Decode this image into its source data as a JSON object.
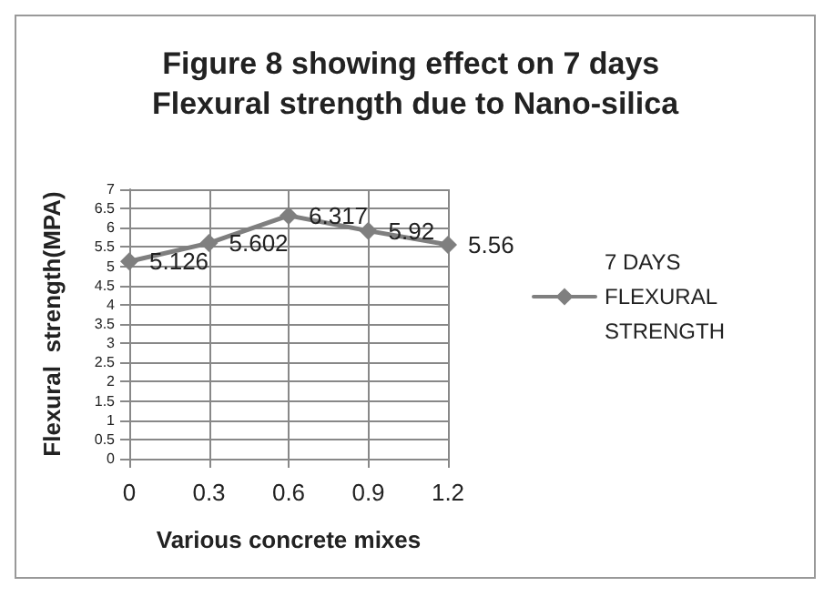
{
  "chart_data": {
    "type": "line",
    "title": "Figure 8 showing effect on 7 days Flexural strength due to Nano-silica",
    "xlabel": "Various concrete mixes",
    "ylabel": "Flexural  strength(MPA)",
    "categories": [
      "0",
      "0.3",
      "0.6",
      "0.9",
      "1.2"
    ],
    "series": [
      {
        "name": "7 DAYS FLEXURAL STRENGTH",
        "color": "#7f7f7f",
        "values": [
          5.126,
          5.602,
          6.317,
          5.92,
          5.56
        ]
      }
    ],
    "ylim": [
      0,
      7
    ],
    "yticks": [
      0,
      0.5,
      1,
      1.5,
      2,
      2.5,
      3,
      3.5,
      4,
      4.5,
      5,
      5.5,
      6,
      6.5,
      7
    ],
    "grid": true,
    "legend": "right",
    "marker": "diamond",
    "line_style": "solid",
    "data_labels": true
  }
}
